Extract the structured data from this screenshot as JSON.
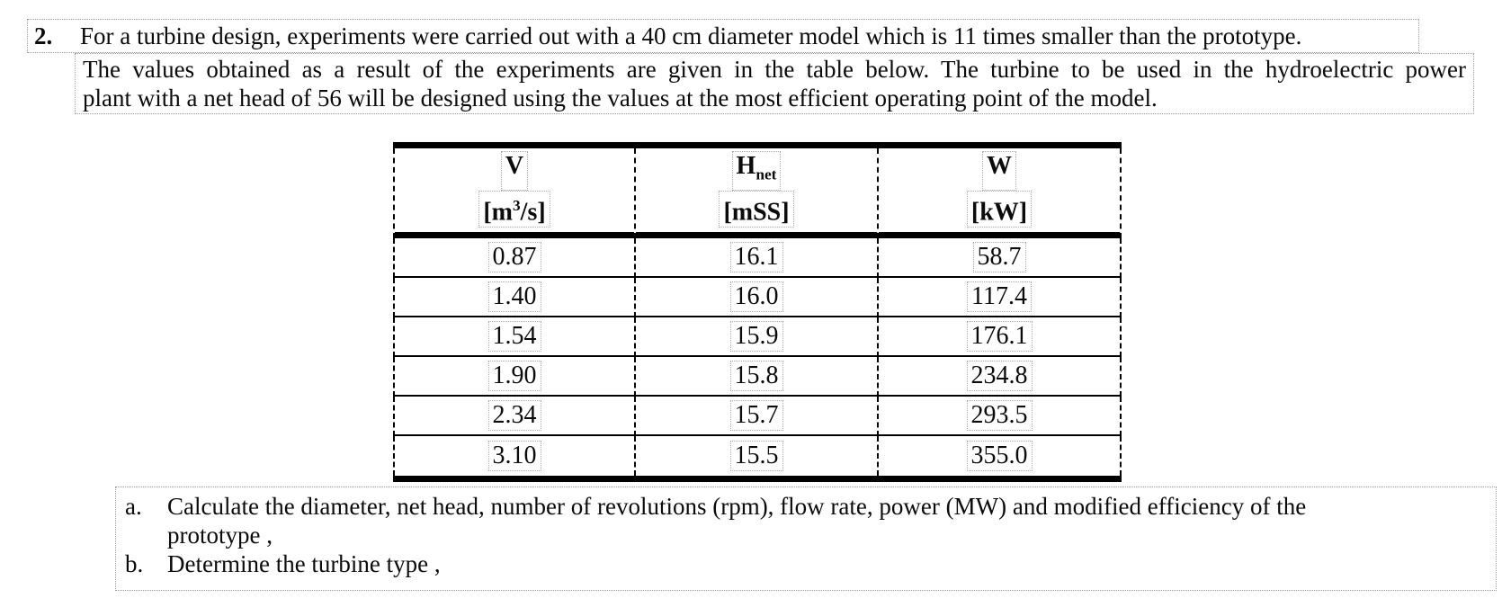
{
  "problem": {
    "number": "2.",
    "line1": "For a turbine design, experiments were carried out with a 40 cm diameter model which is 11 times smaller than the prototype.",
    "line2": "The values obtained as a result of the experiments are given in the table below. The turbine to be used in the hydroelectric power",
    "line3": "plant with a net head of 56 will be designed using the values at the most efficient operating point of the model."
  },
  "table": {
    "columns": [
      {
        "name": "V",
        "name_sub": "",
        "unit_pre": "[m",
        "unit_sup": "3",
        "unit_post": "/s]"
      },
      {
        "name": "H",
        "name_sub": "net",
        "unit_pre": "[mSS]",
        "unit_sup": "",
        "unit_post": ""
      },
      {
        "name": "W",
        "name_sub": "",
        "unit_pre": "[kW]",
        "unit_sup": "",
        "unit_post": ""
      }
    ],
    "rows": [
      [
        "0.87",
        "16.1",
        "58.7"
      ],
      [
        "1.40",
        "16.0",
        "117.4"
      ],
      [
        "1.54",
        "15.9",
        "176.1"
      ],
      [
        "1.90",
        "15.8",
        "234.8"
      ],
      [
        "2.34",
        "15.7",
        "293.5"
      ],
      [
        "3.10",
        "15.5",
        "355.0"
      ]
    ]
  },
  "questions": {
    "a": {
      "marker": "a.",
      "line1": "Calculate the diameter, net head, number of revolutions (rpm), flow rate, power (MW) and modified efficiency of the",
      "line2": "prototype ,"
    },
    "b": {
      "marker": "b.",
      "text": "Determine the turbine type ,"
    }
  }
}
